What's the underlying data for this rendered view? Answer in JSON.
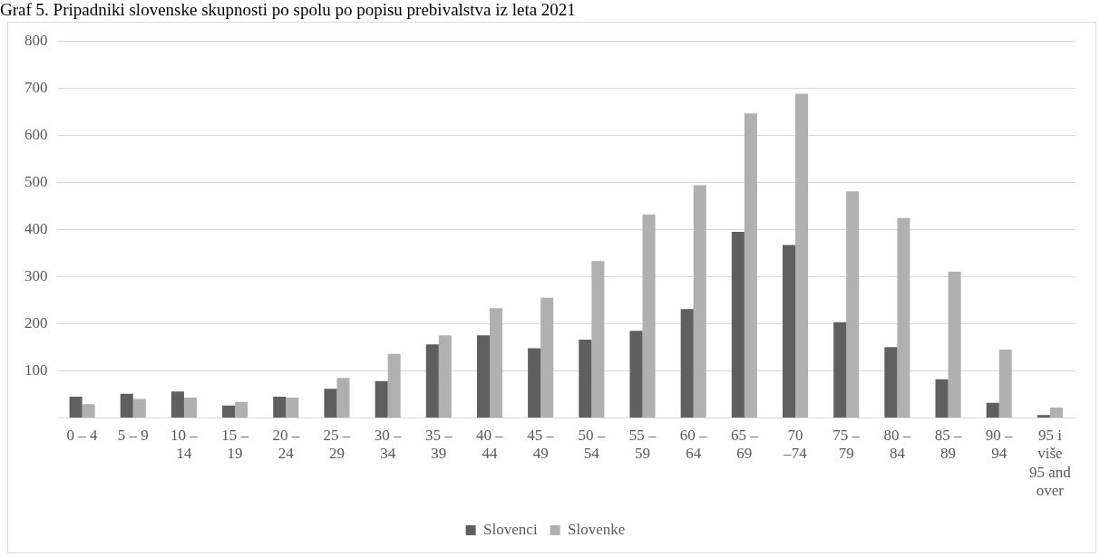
{
  "chart_data": {
    "type": "bar",
    "title": "Graf 5. Pripadniki slovenske skupnosti po spolu po popisu prebivalstva iz leta 2021",
    "categories": [
      "0 – 4",
      "5 – 9",
      "10 – 14",
      "15 – 19",
      "20 – 24",
      "25 – 29",
      "30 – 34",
      "35 – 39",
      "40 – 44",
      "45 – 49",
      "50 – 54",
      "55 – 59",
      "60 – 64",
      "65 – 69",
      "70 –74",
      "75 – 79",
      "80 – 84",
      "85 – 89",
      "90 – 94",
      "95 i više 95 and over"
    ],
    "series": [
      {
        "name": "Slovenci",
        "color": "#5f5f5f",
        "values": [
          45,
          51,
          56,
          26,
          45,
          62,
          78,
          156,
          175,
          148,
          166,
          185,
          231,
          395,
          367,
          203,
          150,
          82,
          32,
          6
        ]
      },
      {
        "name": "Slovenke",
        "color": "#b0b0b0",
        "values": [
          29,
          40,
          43,
          34,
          43,
          85,
          136,
          175,
          233,
          255,
          333,
          432,
          494,
          646,
          688,
          481,
          424,
          310,
          145,
          22
        ]
      }
    ],
    "ylim": [
      0,
      800
    ],
    "yticks": [
      {
        "value": 0,
        "label": null
      },
      100,
      200,
      300,
      400,
      500,
      600,
      700,
      800
    ],
    "grid": "y",
    "legend": "bottom"
  }
}
